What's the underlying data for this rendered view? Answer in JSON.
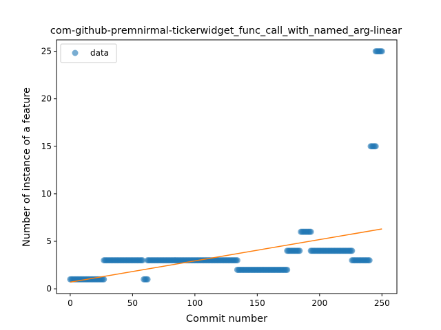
{
  "chart_data": {
    "type": "scatter",
    "title": "com-github-premnirmal-tickerwidget_func_call_with_named_arg-linear",
    "xlabel": "Commit number",
    "ylabel": "Number of instance of a feature",
    "xlim": [
      -11,
      262
    ],
    "ylim": [
      -0.5,
      26.2
    ],
    "xticks": [
      0,
      50,
      100,
      150,
      200,
      250
    ],
    "yticks": [
      0,
      5,
      10,
      15,
      20,
      25
    ],
    "legend": {
      "label": "data",
      "placement": "top-left"
    },
    "series": [
      {
        "name": "data",
        "kind": "scatter",
        "color": "#1f77b4",
        "segments": [
          {
            "x_start": 0,
            "x_end": 27,
            "y": 1
          },
          {
            "x_start": 27,
            "x_end": 58,
            "y": 3
          },
          {
            "x_start": 59,
            "x_end": 62,
            "y": 1
          },
          {
            "x_start": 62,
            "x_end": 134,
            "y": 3
          },
          {
            "x_start": 134,
            "x_end": 174,
            "y": 2
          },
          {
            "x_start": 174,
            "x_end": 184,
            "y": 4
          },
          {
            "x_start": 185,
            "x_end": 193,
            "y": 6
          },
          {
            "x_start": 193,
            "x_end": 226,
            "y": 4
          },
          {
            "x_start": 226,
            "x_end": 240,
            "y": 3
          },
          {
            "x_start": 241,
            "x_end": 245,
            "y": 15
          },
          {
            "x_start": 245,
            "x_end": 250,
            "y": 25
          }
        ]
      },
      {
        "name": "linear fit",
        "kind": "line",
        "color": "#ff7f0e",
        "x": [
          0,
          250
        ],
        "y": [
          0.7,
          6.3
        ]
      }
    ]
  }
}
